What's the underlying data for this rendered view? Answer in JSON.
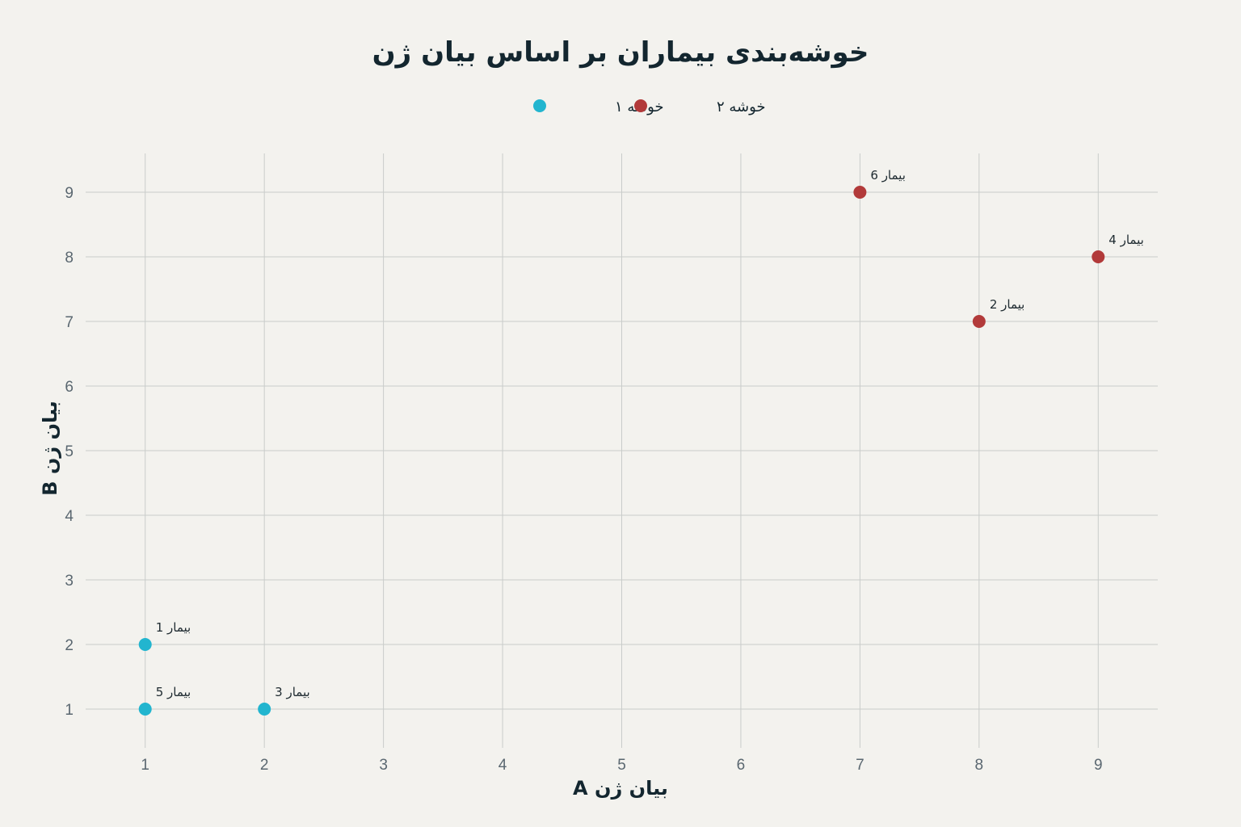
{
  "chart_data": {
    "type": "scatter",
    "title": "خوشه‌بندی بیماران بر اساس بیان ژن",
    "xlabel": "بیان ژن A",
    "ylabel": "بیان ژن B",
    "xlim": [
      0.5,
      9.5
    ],
    "ylim": [
      0.4,
      9.6
    ],
    "x_ticks": [
      1,
      2,
      3,
      4,
      5,
      6,
      7,
      8,
      9
    ],
    "y_ticks": [
      1,
      2,
      3,
      4,
      5,
      6,
      7,
      8,
      9
    ],
    "grid": true,
    "legend_position": "top-center",
    "series": [
      {
        "name": "خوشه ۱",
        "color": "#22b5cf",
        "points": [
          {
            "x": 1,
            "y": 2,
            "label": "بیمار 1"
          },
          {
            "x": 2,
            "y": 1,
            "label": "بیمار 3"
          },
          {
            "x": 1,
            "y": 1,
            "label": "بیمار 5"
          }
        ]
      },
      {
        "name": "خوشه ۲",
        "color": "#b23a3a",
        "points": [
          {
            "x": 8,
            "y": 7,
            "label": "بیمار 2"
          },
          {
            "x": 9,
            "y": 8,
            "label": "بیمار 4"
          },
          {
            "x": 7,
            "y": 9,
            "label": "بیمار 6"
          }
        ]
      }
    ]
  }
}
